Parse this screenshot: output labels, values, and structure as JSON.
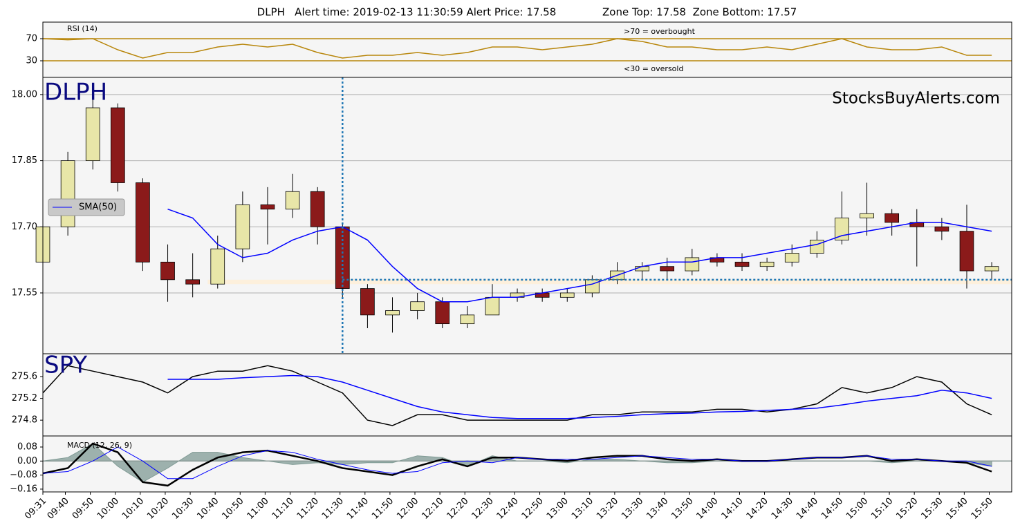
{
  "title": "DLPH   Alert time: 2019-02-13 11:30:59 Alert Price: 17.58              Zone Top: 17.58  Zone Bottom: 17.57",
  "chart_data": [
    {
      "type": "line",
      "title": "RSI (14)",
      "annotations": [
        ">70 = overbought",
        "<30 = oversold"
      ],
      "x": [
        "09:31",
        "09:41",
        "09:51",
        "10:01",
        "10:11",
        "10:21",
        "10:31",
        "10:41",
        "10:51",
        "11:01",
        "11:11",
        "11:21",
        "11:31",
        "11:41",
        "11:51",
        "12:01",
        "12:11",
        "12:21",
        "12:31",
        "12:41",
        "12:51",
        "13:01",
        "13:11",
        "13:21",
        "13:31",
        "13:41",
        "13:51",
        "14:01",
        "14:11",
        "14:21",
        "14:31",
        "14:41",
        "14:51",
        "15:01",
        "15:11",
        "15:21",
        "15:31",
        "15:41",
        "15:51"
      ],
      "xlim": [
        "09:31",
        "15:59"
      ],
      "series": [
        {
          "color": "#b8860b",
          "values": [
            70,
            68,
            70,
            50,
            35,
            45,
            45,
            55,
            60,
            55,
            60,
            45,
            35,
            40,
            40,
            45,
            40,
            45,
            55,
            55,
            50,
            55,
            60,
            70,
            65,
            55,
            55,
            50,
            50,
            55,
            50,
            60,
            70,
            55,
            50,
            50,
            55,
            40,
            40
          ]
        }
      ],
      "ylim": [
        0,
        100
      ],
      "yticks": [
        30,
        70
      ],
      "grid": true,
      "grid_color": "#b8860b"
    },
    {
      "type": "candlestick",
      "title": "DLPH",
      "watermark": "StocksBuyAlerts.com",
      "x": [
        "09:31",
        "09:41",
        "09:51",
        "10:01",
        "10:11",
        "10:21",
        "10:31",
        "10:41",
        "10:51",
        "11:01",
        "11:11",
        "11:21",
        "11:31",
        "11:41",
        "11:51",
        "12:01",
        "12:11",
        "12:21",
        "12:31",
        "12:41",
        "12:51",
        "13:01",
        "13:11",
        "13:21",
        "13:31",
        "13:41",
        "13:51",
        "14:01",
        "14:11",
        "14:21",
        "14:31",
        "14:41",
        "14:51",
        "15:01",
        "15:11",
        "15:21",
        "15:31",
        "15:41",
        "15:51"
      ],
      "xlim": [
        "09:31",
        "15:59"
      ],
      "open": [
        17.62,
        17.7,
        17.85,
        17.97,
        17.8,
        17.62,
        17.58,
        17.57,
        17.65,
        17.75,
        17.74,
        17.78,
        17.7,
        17.56,
        17.5,
        17.51,
        17.53,
        17.48,
        17.5,
        17.54,
        17.55,
        17.54,
        17.55,
        17.58,
        17.6,
        17.61,
        17.6,
        17.63,
        17.62,
        17.61,
        17.62,
        17.64,
        17.67,
        17.72,
        17.73,
        17.71,
        17.7,
        17.69,
        17.6
      ],
      "high": [
        17.72,
        17.87,
        18.0,
        17.98,
        17.81,
        17.66,
        17.64,
        17.68,
        17.78,
        17.79,
        17.82,
        17.79,
        17.71,
        17.57,
        17.54,
        17.55,
        17.54,
        17.52,
        17.57,
        17.56,
        17.56,
        17.56,
        17.59,
        17.62,
        17.62,
        17.63,
        17.65,
        17.64,
        17.64,
        17.63,
        17.66,
        17.69,
        17.78,
        17.8,
        17.74,
        17.74,
        17.72,
        17.75,
        17.62
      ],
      "low": [
        17.6,
        17.68,
        17.83,
        17.78,
        17.6,
        17.53,
        17.54,
        17.56,
        17.62,
        17.66,
        17.72,
        17.66,
        17.54,
        17.47,
        17.46,
        17.49,
        17.47,
        17.47,
        17.5,
        17.53,
        17.53,
        17.53,
        17.54,
        17.57,
        17.58,
        17.58,
        17.59,
        17.61,
        17.6,
        17.6,
        17.61,
        17.63,
        17.66,
        17.68,
        17.68,
        17.61,
        17.67,
        17.56,
        17.58
      ],
      "close": [
        17.7,
        17.85,
        17.97,
        17.8,
        17.62,
        17.58,
        17.57,
        17.65,
        17.75,
        17.74,
        17.78,
        17.7,
        17.56,
        17.5,
        17.51,
        17.53,
        17.48,
        17.5,
        17.54,
        17.55,
        17.54,
        17.55,
        17.58,
        17.6,
        17.61,
        17.6,
        17.63,
        17.62,
        17.61,
        17.62,
        17.64,
        17.67,
        17.72,
        17.73,
        17.71,
        17.7,
        17.69,
        17.6,
        17.61
      ],
      "up_color": "#e8e6a8",
      "down_color": "#8b1a1a",
      "series": [
        {
          "name": "SMA(50)",
          "color": "#0000ff",
          "values": [
            null,
            null,
            null,
            null,
            null,
            17.74,
            17.72,
            17.66,
            17.63,
            17.64,
            17.67,
            17.69,
            17.7,
            17.67,
            17.61,
            17.56,
            17.53,
            17.53,
            17.54,
            17.54,
            17.55,
            17.56,
            17.57,
            17.59,
            17.61,
            17.62,
            17.62,
            17.63,
            17.63,
            17.64,
            17.65,
            17.66,
            17.68,
            17.69,
            17.7,
            17.71,
            17.71,
            17.7,
            17.69
          ]
        }
      ],
      "alert": {
        "time": "11:31",
        "price": 17.58,
        "color": "#1f77b4"
      },
      "zone": {
        "start": "10:37",
        "bottom": 17.57,
        "top": 17.58,
        "color": "#fdf0dc"
      },
      "ylim": [
        17.412,
        18.039
      ],
      "yticks": [
        {
          "value": 17.55,
          "label": "17.55"
        },
        {
          "value": 17.7,
          "label": "17.70"
        },
        {
          "value": 17.85,
          "label": "17.85"
        },
        {
          "value": 18,
          "label": "18.00"
        }
      ],
      "grid": true,
      "legend": "center left"
    },
    {
      "type": "line",
      "title": "SPY",
      "x": [
        "09:31",
        "09:41",
        "09:51",
        "10:01",
        "10:11",
        "10:21",
        "10:31",
        "10:41",
        "10:51",
        "11:01",
        "11:11",
        "11:21",
        "11:31",
        "11:41",
        "11:51",
        "12:01",
        "12:11",
        "12:21",
        "12:31",
        "12:41",
        "12:51",
        "13:01",
        "13:11",
        "13:21",
        "13:31",
        "13:41",
        "13:51",
        "14:01",
        "14:11",
        "14:21",
        "14:31",
        "14:41",
        "14:51",
        "15:01",
        "15:11",
        "15:21",
        "15:31",
        "15:41",
        "15:51"
      ],
      "xlim": [
        "09:31",
        "15:59"
      ],
      "series": [
        {
          "color": "#000000",
          "values": [
            275.3,
            275.8,
            275.7,
            275.6,
            275.5,
            275.3,
            275.6,
            275.7,
            275.7,
            275.8,
            275.7,
            275.5,
            275.3,
            274.8,
            274.7,
            274.9,
            274.9,
            274.8,
            274.8,
            274.8,
            274.8,
            274.8,
            274.9,
            274.9,
            274.95,
            274.95,
            274.95,
            275.0,
            275.0,
            274.95,
            275.0,
            275.1,
            275.4,
            275.3,
            275.4,
            275.6,
            275.5,
            275.1,
            274.9
          ]
        },
        {
          "color": "#0000ff",
          "values": [
            null,
            null,
            null,
            null,
            null,
            275.55,
            275.55,
            275.55,
            275.58,
            275.6,
            275.62,
            275.6,
            275.5,
            275.35,
            275.2,
            275.05,
            274.95,
            274.9,
            274.85,
            274.83,
            274.83,
            274.83,
            274.85,
            274.87,
            274.9,
            274.92,
            274.93,
            274.95,
            274.96,
            274.98,
            275.0,
            275.02,
            275.08,
            275.15,
            275.2,
            275.25,
            275.35,
            275.3,
            275.2
          ]
        }
      ],
      "ylim": [
        274.51,
        276.02
      ],
      "yticks": [
        274.8,
        275.2,
        275.6
      ],
      "grid": false
    },
    {
      "type": "line",
      "title": "MACD (12, 26, 9)",
      "x": [
        "09:31",
        "09:41",
        "09:51",
        "10:01",
        "10:11",
        "10:21",
        "10:31",
        "10:41",
        "10:51",
        "11:01",
        "11:11",
        "11:21",
        "11:31",
        "11:41",
        "11:51",
        "12:01",
        "12:11",
        "12:21",
        "12:31",
        "12:41",
        "12:51",
        "13:01",
        "13:11",
        "13:21",
        "13:31",
        "13:41",
        "13:51",
        "14:01",
        "14:11",
        "14:21",
        "14:31",
        "14:41",
        "14:51",
        "15:01",
        "15:11",
        "15:21",
        "15:31",
        "15:41",
        "15:51"
      ],
      "xlim": [
        "09:31",
        "15:59"
      ],
      "series": [
        {
          "color": "#7f9a94",
          "area": true,
          "values": [
            0,
            0.02,
            0.1,
            -0.03,
            -0.12,
            -0.04,
            0.05,
            0.05,
            0.02,
            0,
            -0.02,
            -0.01,
            -0.02,
            -0.01,
            -0.01,
            0.03,
            0.02,
            -0.03,
            0.03,
            0,
            0,
            -0.01,
            0.01,
            0.01,
            0,
            -0.01,
            -0.01,
            0,
            0,
            0,
            0,
            0,
            0,
            0,
            -0.01,
            0,
            0,
            -0.01,
            -0.03
          ]
        },
        {
          "color": "#000000",
          "width": 2.5,
          "values": [
            -0.07,
            -0.04,
            0.1,
            0.05,
            -0.12,
            -0.14,
            -0.05,
            0.02,
            0.05,
            0.06,
            0.03,
            0,
            -0.04,
            -0.06,
            -0.08,
            -0.03,
            0.01,
            -0.03,
            0.02,
            0.02,
            0.01,
            0,
            0.02,
            0.03,
            0.03,
            0.01,
            0,
            0.01,
            0,
            0,
            0.01,
            0.02,
            0.02,
            0.03,
            0,
            0.01,
            0,
            -0.01,
            -0.06
          ]
        },
        {
          "color": "#0000ff",
          "width": 1,
          "values": [
            -0.07,
            -0.06,
            0,
            0.08,
            0,
            -0.1,
            -0.1,
            -0.03,
            0.03,
            0.06,
            0.05,
            0.01,
            -0.02,
            -0.05,
            -0.07,
            -0.06,
            -0.01,
            0,
            -0.01,
            0.02,
            0.01,
            0.01,
            0.01,
            0.02,
            0.03,
            0.02,
            0.01,
            0.01,
            0,
            0,
            0.01,
            0.02,
            0.02,
            0.03,
            0.01,
            0.01,
            0,
            0,
            -0.03
          ]
        }
      ],
      "ylim": [
        -0.176,
        0.143
      ],
      "yticks": [
        {
          "value": -0.16,
          "label": "−0.16"
        },
        {
          "value": -0.08,
          "label": "−0.08"
        },
        {
          "value": 0,
          "label": "0.00"
        },
        {
          "value": 0.08,
          "label": "0.08"
        }
      ],
      "xticks": [
        "09:31",
        "09:40",
        "09:50",
        "10:00",
        "10:10",
        "10:20",
        "10:30",
        "10:40",
        "10:50",
        "11:00",
        "11:10",
        "11:20",
        "11:30",
        "11:40",
        "11:50",
        "12:00",
        "12:10",
        "12:20",
        "12:30",
        "12:40",
        "12:50",
        "13:00",
        "13:10",
        "13:20",
        "13:30",
        "13:40",
        "13:50",
        "14:00",
        "14:10",
        "14:20",
        "14:30",
        "14:40",
        "14:50",
        "15:00",
        "15:10",
        "15:20",
        "15:30",
        "15:40",
        "15:50"
      ],
      "grid": false
    }
  ]
}
